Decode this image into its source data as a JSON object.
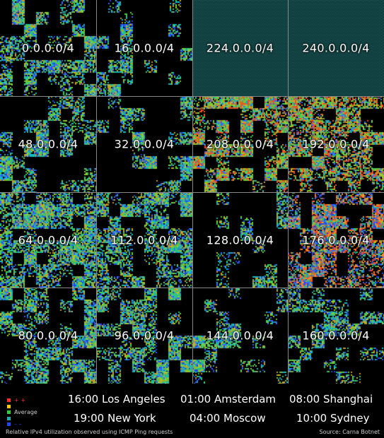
{
  "map": {
    "blocks": [
      {
        "label": "0.0.0.0/4",
        "density": 0.45,
        "palette": "mixed",
        "hatched": false
      },
      {
        "label": "16.0.0.0/4",
        "density": 0.3,
        "palette": "mixed",
        "hatched": false
      },
      {
        "label": "224.0.0.0/4",
        "density": 0,
        "palette": "none",
        "hatched": true
      },
      {
        "label": "240.0.0.0/4",
        "density": 0,
        "palette": "none",
        "hatched": true
      },
      {
        "label": "48.0.0.0/4",
        "density": 0.5,
        "palette": "mixed",
        "hatched": false
      },
      {
        "label": "32.0.0.0/4",
        "density": 0.35,
        "palette": "mixed",
        "hatched": false
      },
      {
        "label": "208.0.0.0/4",
        "density": 0.7,
        "palette": "warm",
        "hatched": false
      },
      {
        "label": "192.0.0.0/4",
        "density": 0.75,
        "palette": "warm",
        "hatched": false
      },
      {
        "label": "64.0.0.0/4",
        "density": 0.8,
        "palette": "mixed",
        "hatched": false
      },
      {
        "label": "112.0.0.0/4",
        "density": 0.7,
        "palette": "mixed",
        "hatched": false
      },
      {
        "label": "128.0.0.0/4",
        "density": 0.25,
        "palette": "mixed",
        "hatched": false
      },
      {
        "label": "176.0.0.0/4",
        "density": 0.75,
        "palette": "hot",
        "hatched": false
      },
      {
        "label": "80.0.0.0/4",
        "density": 0.7,
        "palette": "mixed",
        "hatched": false
      },
      {
        "label": "96.0.0.0/4",
        "density": 0.6,
        "palette": "mixed",
        "hatched": false
      },
      {
        "label": "144.0.0.0/4",
        "density": 0.2,
        "palette": "mixed",
        "hatched": false
      },
      {
        "label": "160.0.0.0/4",
        "density": 0.4,
        "palette": "mixed",
        "hatched": false
      }
    ]
  },
  "legend": {
    "items": [
      {
        "label": "+ +",
        "color": "#ff2a2a",
        "text_color": "#ff2a2a"
      },
      {
        "label": "",
        "color": "#ffcc00",
        "text_color": "#ccc"
      },
      {
        "label": "Average",
        "color": "#33cc33",
        "text_color": "#ccc"
      },
      {
        "label": "",
        "color": "#22aaaa",
        "text_color": "#ccc"
      },
      {
        "label": "– –",
        "color": "#2244ff",
        "text_color": "#2244ff"
      }
    ]
  },
  "timezones": [
    {
      "text": "16:00 Los Angeles"
    },
    {
      "text": "01:00 Amsterdam"
    },
    {
      "text": "08:00 Shanghai"
    },
    {
      "text": "19:00 New York"
    },
    {
      "text": "04:00 Moscow"
    },
    {
      "text": "10:00 Sydney"
    }
  ],
  "caption": "Relative IPv4 utilization observed using ICMP Ping requests",
  "source": "Source: Carna Botnet",
  "colors": {
    "hatch": "#0f3a3a",
    "divider": "#888888",
    "background": "#000000"
  }
}
